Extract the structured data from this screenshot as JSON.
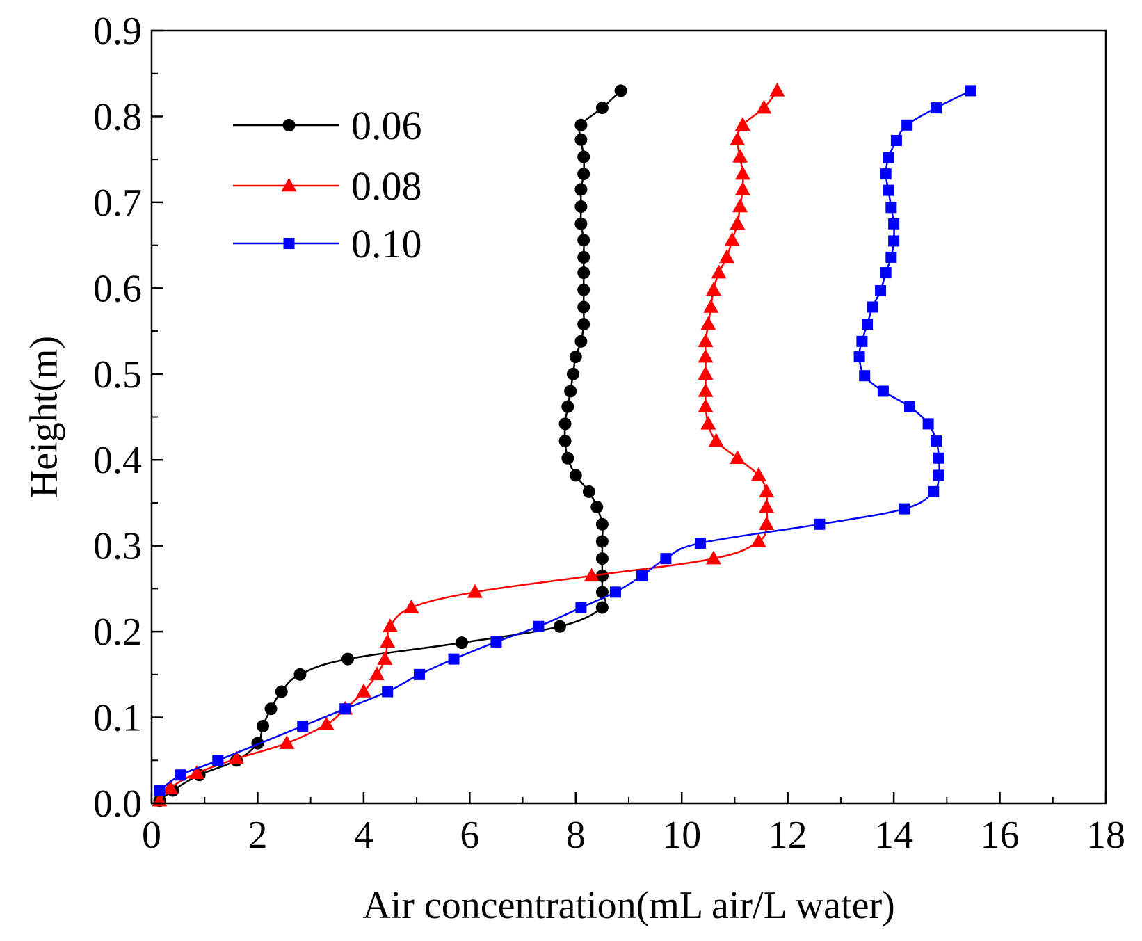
{
  "chart_data": {
    "type": "line",
    "xlabel": "Air concentration(mL air/L water)",
    "ylabel": "Height(m)",
    "xlim": [
      0,
      18
    ],
    "ylim": [
      0,
      0.9
    ],
    "xticks": [
      0,
      2,
      4,
      6,
      8,
      10,
      12,
      14,
      16,
      18
    ],
    "yticks": [
      0.0,
      0.1,
      0.2,
      0.3,
      0.4,
      0.5,
      0.6,
      0.7,
      0.8,
      0.9
    ],
    "xtick_labels": [
      "0",
      "2",
      "4",
      "6",
      "8",
      "10",
      "12",
      "14",
      "16",
      "18"
    ],
    "ytick_labels": [
      "0.0",
      "0.1",
      "0.2",
      "0.3",
      "0.4",
      "0.5",
      "0.6",
      "0.7",
      "0.8",
      "0.9"
    ],
    "grid": false,
    "legend_position": "top-left",
    "series": [
      {
        "name": "0.06",
        "color": "#000000",
        "marker": "circle",
        "points": [
          [
            0.15,
            0.003
          ],
          [
            0.4,
            0.015
          ],
          [
            0.9,
            0.033
          ],
          [
            1.6,
            0.05
          ],
          [
            2.0,
            0.07
          ],
          [
            2.1,
            0.09
          ],
          [
            2.25,
            0.11
          ],
          [
            2.45,
            0.13
          ],
          [
            2.8,
            0.15
          ],
          [
            3.7,
            0.168
          ],
          [
            5.85,
            0.187
          ],
          [
            7.7,
            0.206
          ],
          [
            8.5,
            0.228
          ],
          [
            8.5,
            0.246
          ],
          [
            8.5,
            0.265
          ],
          [
            8.5,
            0.285
          ],
          [
            8.5,
            0.305
          ],
          [
            8.5,
            0.325
          ],
          [
            8.4,
            0.345
          ],
          [
            8.25,
            0.363
          ],
          [
            8.0,
            0.382
          ],
          [
            7.85,
            0.402
          ],
          [
            7.8,
            0.422
          ],
          [
            7.8,
            0.442
          ],
          [
            7.85,
            0.462
          ],
          [
            7.9,
            0.48
          ],
          [
            7.95,
            0.5
          ],
          [
            8.0,
            0.52
          ],
          [
            8.1,
            0.538
          ],
          [
            8.15,
            0.558
          ],
          [
            8.15,
            0.578
          ],
          [
            8.15,
            0.598
          ],
          [
            8.15,
            0.618
          ],
          [
            8.15,
            0.636
          ],
          [
            8.15,
            0.656
          ],
          [
            8.1,
            0.675
          ],
          [
            8.1,
            0.695
          ],
          [
            8.1,
            0.715
          ],
          [
            8.15,
            0.733
          ],
          [
            8.15,
            0.753
          ],
          [
            8.1,
            0.773
          ],
          [
            8.1,
            0.79
          ],
          [
            8.5,
            0.81
          ],
          [
            8.85,
            0.83
          ]
        ]
      },
      {
        "name": "0.08",
        "color": "#ff0000",
        "marker": "triangle",
        "points": [
          [
            0.15,
            0.003
          ],
          [
            0.35,
            0.018
          ],
          [
            0.85,
            0.035
          ],
          [
            1.6,
            0.052
          ],
          [
            2.55,
            0.07
          ],
          [
            3.3,
            0.092
          ],
          [
            3.65,
            0.11
          ],
          [
            4.0,
            0.13
          ],
          [
            4.25,
            0.15
          ],
          [
            4.4,
            0.168
          ],
          [
            4.45,
            0.188
          ],
          [
            4.5,
            0.206
          ],
          [
            4.9,
            0.228
          ],
          [
            6.1,
            0.246
          ],
          [
            8.3,
            0.265
          ],
          [
            10.6,
            0.285
          ],
          [
            11.45,
            0.305
          ],
          [
            11.6,
            0.325
          ],
          [
            11.6,
            0.345
          ],
          [
            11.6,
            0.363
          ],
          [
            11.45,
            0.382
          ],
          [
            11.05,
            0.402
          ],
          [
            10.65,
            0.422
          ],
          [
            10.5,
            0.442
          ],
          [
            10.45,
            0.462
          ],
          [
            10.45,
            0.48
          ],
          [
            10.45,
            0.5
          ],
          [
            10.45,
            0.52
          ],
          [
            10.45,
            0.538
          ],
          [
            10.5,
            0.558
          ],
          [
            10.55,
            0.578
          ],
          [
            10.6,
            0.598
          ],
          [
            10.7,
            0.618
          ],
          [
            10.85,
            0.636
          ],
          [
            10.95,
            0.656
          ],
          [
            11.05,
            0.675
          ],
          [
            11.1,
            0.695
          ],
          [
            11.15,
            0.715
          ],
          [
            11.15,
            0.733
          ],
          [
            11.1,
            0.753
          ],
          [
            11.05,
            0.773
          ],
          [
            11.15,
            0.79
          ],
          [
            11.55,
            0.81
          ],
          [
            11.8,
            0.83
          ]
        ]
      },
      {
        "name": "0.10",
        "color": "#0000ff",
        "marker": "square",
        "points": [
          [
            0.15,
            0.015
          ],
          [
            0.55,
            0.033
          ],
          [
            1.25,
            0.05
          ],
          [
            2.85,
            0.09
          ],
          [
            3.65,
            0.11
          ],
          [
            4.45,
            0.13
          ],
          [
            5.05,
            0.15
          ],
          [
            5.7,
            0.168
          ],
          [
            6.5,
            0.188
          ],
          [
            7.3,
            0.206
          ],
          [
            8.1,
            0.228
          ],
          [
            8.75,
            0.246
          ],
          [
            9.25,
            0.265
          ],
          [
            9.7,
            0.285
          ],
          [
            10.35,
            0.303
          ],
          [
            12.6,
            0.325
          ],
          [
            14.2,
            0.343
          ],
          [
            14.75,
            0.363
          ],
          [
            14.85,
            0.382
          ],
          [
            14.85,
            0.402
          ],
          [
            14.8,
            0.422
          ],
          [
            14.65,
            0.442
          ],
          [
            14.3,
            0.462
          ],
          [
            13.8,
            0.48
          ],
          [
            13.45,
            0.498
          ],
          [
            13.35,
            0.52
          ],
          [
            13.4,
            0.538
          ],
          [
            13.5,
            0.558
          ],
          [
            13.6,
            0.578
          ],
          [
            13.75,
            0.597
          ],
          [
            13.85,
            0.618
          ],
          [
            13.95,
            0.636
          ],
          [
            14.0,
            0.655
          ],
          [
            14.0,
            0.675
          ],
          [
            13.95,
            0.694
          ],
          [
            13.9,
            0.714
          ],
          [
            13.85,
            0.733
          ],
          [
            13.9,
            0.752
          ],
          [
            14.05,
            0.772
          ],
          [
            14.25,
            0.79
          ],
          [
            14.8,
            0.81
          ],
          [
            15.45,
            0.83
          ]
        ]
      }
    ]
  }
}
